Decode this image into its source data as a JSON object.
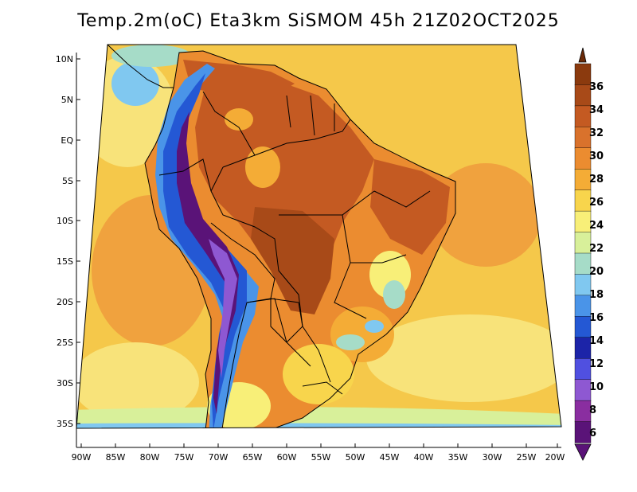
{
  "title": "Temp.2m(oC) Eta3km SiSMOM 45h 21Z02OCT2025",
  "map": {
    "lat_labels": [
      "10N",
      "5N",
      "EQ",
      "5S",
      "10S",
      "15S",
      "20S",
      "25S",
      "30S",
      "35S"
    ],
    "lon_labels": [
      "90W",
      "85W",
      "80W",
      "75W",
      "70W",
      "65W",
      "60W",
      "55W",
      "50W",
      "45W",
      "40W",
      "35W",
      "30W",
      "25W",
      "20W"
    ]
  },
  "colorbar": {
    "unit": "oC",
    "labels": [
      "36",
      "34",
      "32",
      "30",
      "28",
      "26",
      "24",
      "22",
      "20",
      "18",
      "16",
      "14",
      "12",
      "10",
      "8",
      "6"
    ],
    "colors": [
      "#8b3a0e",
      "#a84a18",
      "#c45a22",
      "#d9722c",
      "#eb8c30",
      "#f4ac36",
      "#f8d54c",
      "#f8ef78",
      "#d8f09a",
      "#a6dcc8",
      "#80c8f0",
      "#4a94e8",
      "#2458d4",
      "#1c24a8",
      "#5050e0",
      "#8e58d2",
      "#8a2ea0",
      "#5a1378"
    ]
  },
  "palette": {
    "ocean": "#f5c84a",
    "ocean_warm": "#f0a23e",
    "ocean_cool": "#f8e37a",
    "ocean_cold": "#d8f09a",
    "land_hot": "#c45a22",
    "land_very_hot": "#a84a18",
    "highlands": "#4a94e8",
    "andes_peaks": "#5a1378",
    "borders": "#000000"
  }
}
